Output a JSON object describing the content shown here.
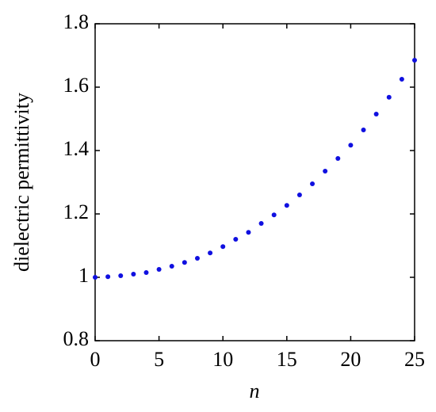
{
  "chart_data": {
    "type": "scatter",
    "xlabel": "n",
    "ylabel": "dielectric permittivity",
    "x": [
      0,
      1,
      2,
      3,
      4,
      5,
      6,
      7,
      8,
      9,
      10,
      11,
      12,
      13,
      14,
      15,
      16,
      17,
      18,
      19,
      20,
      21,
      22,
      23,
      24,
      25
    ],
    "series": [
      {
        "color": "#1010e0",
        "values": [
          1.0,
          1.002,
          1.005,
          1.01,
          1.015,
          1.025,
          1.035,
          1.047,
          1.06,
          1.077,
          1.097,
          1.12,
          1.142,
          1.17,
          1.197,
          1.227,
          1.26,
          1.295,
          1.335,
          1.375,
          1.417,
          1.465,
          1.515,
          1.568,
          1.625,
          1.685
        ]
      }
    ],
    "xlim": [
      0,
      25
    ],
    "xticks": [
      0,
      5,
      10,
      15,
      20,
      25
    ],
    "ylim": [
      0.8,
      1.8
    ],
    "yticks": [
      0.8,
      1,
      1.2,
      1.4,
      1.6,
      1.8
    ]
  }
}
